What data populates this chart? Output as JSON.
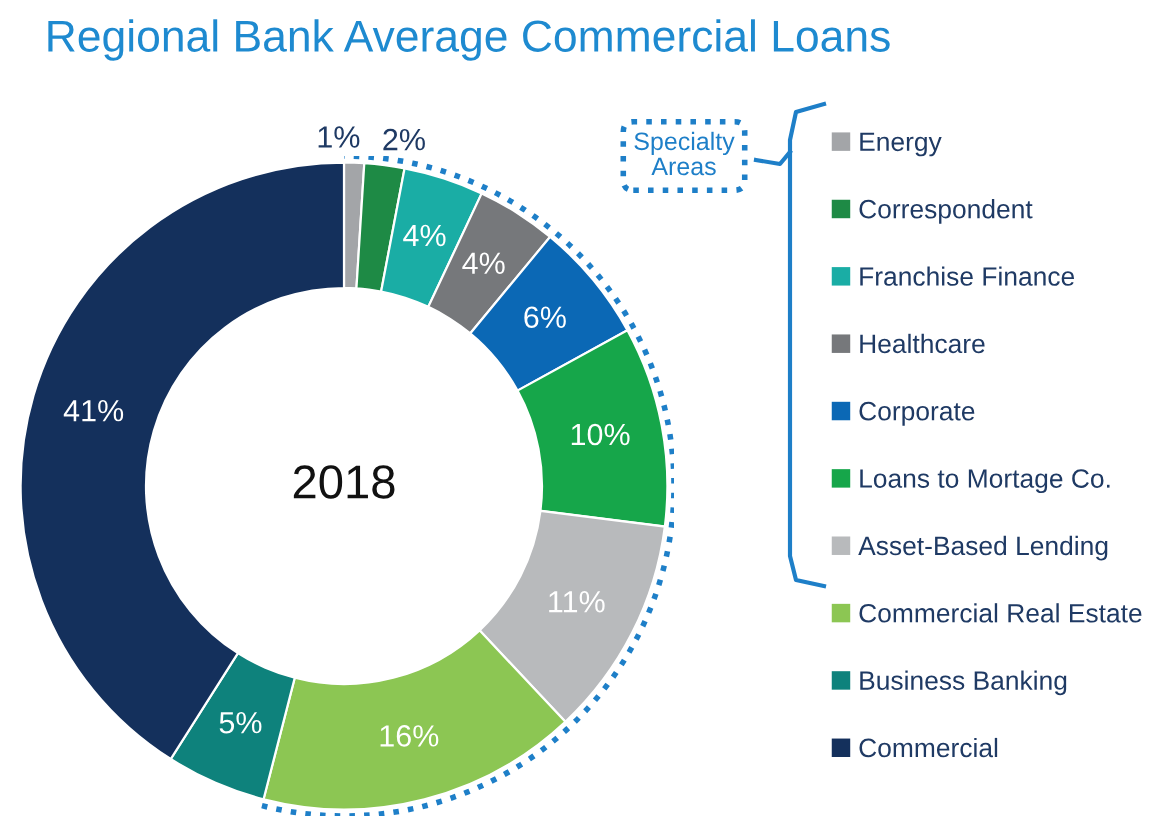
{
  "chart_data": {
    "type": "donut",
    "title": "Regional Bank Average Commercial Loans",
    "categories": [
      "Energy",
      "Correspondent",
      "Franchise Finance",
      "Healthcare",
      "Corporate",
      "Loans to Mortage Co.",
      "Asset-Based Lending",
      "Commercial Real Estate",
      "Business Banking",
      "Commercial"
    ],
    "values": [
      1,
      2,
      4,
      4,
      6,
      10,
      11,
      16,
      5,
      41
    ],
    "colors": [
      "#a3a5a8",
      "#1e8a45",
      "#1aada5",
      "#76787b",
      "#0b68b5",
      "#16a64a",
      "#b8babc",
      "#8cc653",
      "#0e827c",
      "#14305c"
    ],
    "value_labels": [
      "1%",
      "2%",
      "4%",
      "4%",
      "6%",
      "10%",
      "11%",
      "16%",
      "5%",
      "41%"
    ],
    "annotations": [
      "2018",
      "Specialty Areas"
    ],
    "legend": "right"
  }
}
